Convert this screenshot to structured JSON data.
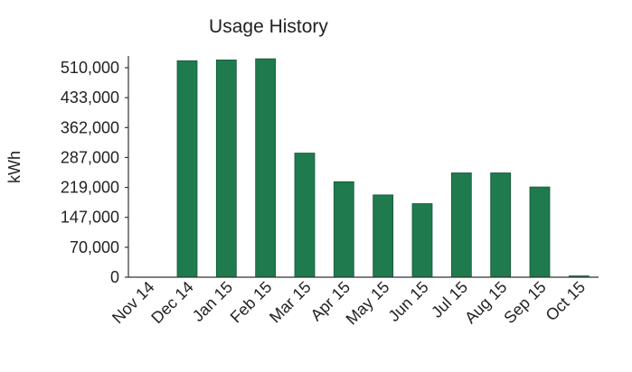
{
  "chart_data": {
    "type": "bar",
    "title": "Usage History",
    "xlabel": "",
    "ylabel": "kWh",
    "categories": [
      "Nov 14",
      "Dec 14",
      "Jan 15",
      "Feb 15",
      "Mar 15",
      "Apr 15",
      "May 15",
      "Jun 15",
      "Jul 15",
      "Aug 15",
      "Sep 15",
      "Oct 15"
    ],
    "values": [
      0,
      528000,
      530000,
      533000,
      298000,
      232000,
      201000,
      180000,
      252000,
      252000,
      220000,
      3000
    ],
    "y_ticks": [
      0,
      70000,
      147000,
      219000,
      287000,
      362000,
      433000,
      510000
    ],
    "y_tick_labels": [
      "0",
      "70,000",
      "147,000",
      "219,000",
      "287,000",
      "362,000",
      "433,000",
      "510,000"
    ],
    "ylim": [
      0,
      545000
    ],
    "grid": false,
    "legend": "none",
    "bar_color": "#1f7a4d"
  }
}
